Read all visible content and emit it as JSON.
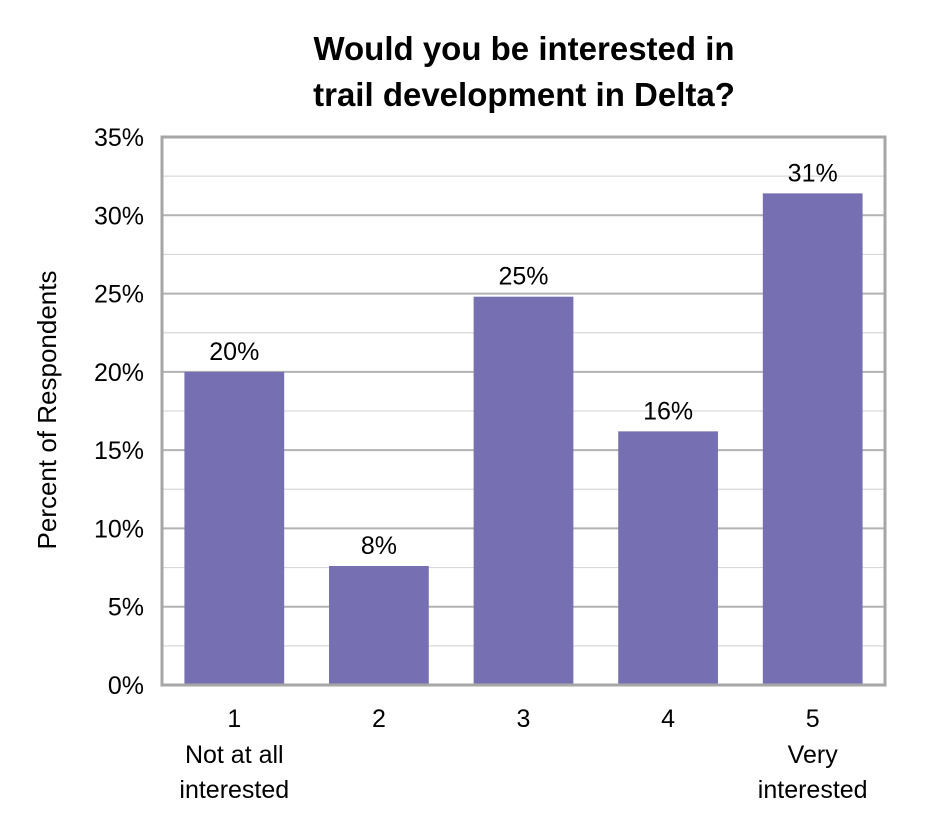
{
  "chart_data": {
    "type": "bar",
    "title_lines": [
      "Would you be interested in",
      "trail development in Delta?"
    ],
    "ylabel": "Percent of Respondents",
    "xlabel": "",
    "categories": [
      "1",
      "2",
      "3",
      "4",
      "5"
    ],
    "category_sublabels": [
      [
        "Not at all",
        "interested"
      ],
      [],
      [],
      [],
      [
        "Very",
        "interested"
      ]
    ],
    "values": [
      20.0,
      7.6,
      24.8,
      16.2,
      31.4
    ],
    "data_labels": [
      "20%",
      "8%",
      "25%",
      "16%",
      "31%"
    ],
    "ylim": [
      0,
      35
    ],
    "yticks": [
      0,
      5,
      10,
      15,
      20,
      25,
      30,
      35
    ],
    "ytick_labels": [
      "0%",
      "5%",
      "10%",
      "15%",
      "20%",
      "25%",
      "30%",
      "35%"
    ],
    "grid": true,
    "legend": "none",
    "bar_color": "#7670b3"
  }
}
